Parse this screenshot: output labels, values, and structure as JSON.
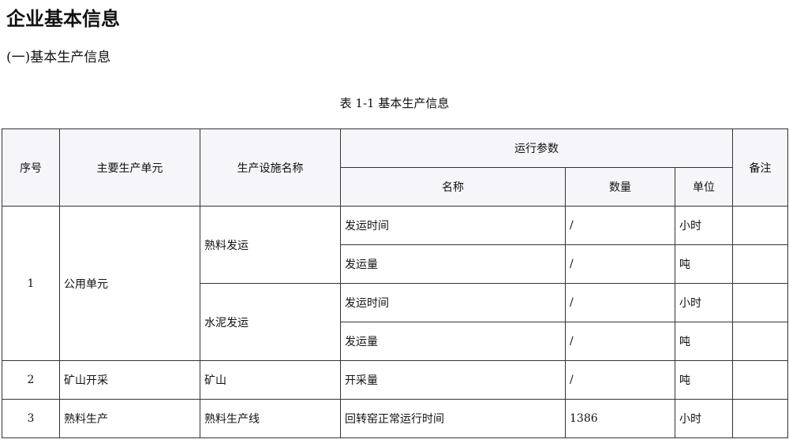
{
  "title": "企业基本信息",
  "section": "(一)基本生产信息",
  "caption": "表 1-1  基本生产信息",
  "headers": {
    "seq": "序号",
    "unit": "主要生产单元",
    "facility": "生产设施名称",
    "params": "运行参数",
    "name": "名称",
    "qty": "数量",
    "uom": "单位",
    "remark": "备注"
  },
  "groups": [
    {
      "seq": "1",
      "unit": "公用单元",
      "facilities": [
        {
          "name": "熟料发运",
          "rows": [
            {
              "param": "发运时间",
              "qty": "/",
              "uom": "小时"
            },
            {
              "param": "发运量",
              "qty": "/",
              "uom": "吨"
            }
          ]
        },
        {
          "name": "水泥发运",
          "rows": [
            {
              "param": "发运时间",
              "qty": "/",
              "uom": "小时"
            },
            {
              "param": "发运量",
              "qty": "/",
              "uom": "吨"
            }
          ]
        }
      ]
    },
    {
      "seq": "2",
      "unit": "矿山开采",
      "facilities": [
        {
          "name": "矿山",
          "rows": [
            {
              "param": "开采量",
              "qty": "/",
              "uom": "吨"
            }
          ]
        }
      ]
    },
    {
      "seq": "3",
      "unit": "熟料生产",
      "facilities": [
        {
          "name": "熟料生产线",
          "rows": [
            {
              "param": "回转窑正常运行时间",
              "qty": "1386",
              "uom": "小时"
            }
          ]
        }
      ]
    }
  ]
}
